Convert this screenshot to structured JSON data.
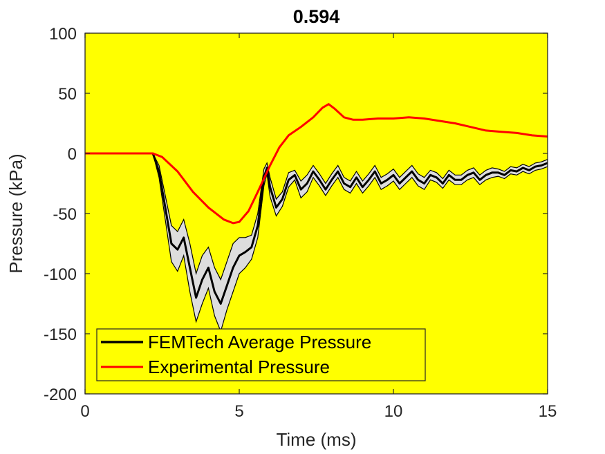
{
  "chart_data": {
    "type": "line",
    "title": "0.594",
    "xlabel": "Time (ms)",
    "ylabel": "Pressure (kPa)",
    "xlim": [
      0,
      15
    ],
    "ylim": [
      -200,
      100
    ],
    "xticks": [
      0,
      5,
      10,
      15
    ],
    "yticks": [
      -200,
      -150,
      -100,
      -50,
      0,
      50,
      100
    ],
    "xtick_labels": [
      "0",
      "5",
      "10",
      "15"
    ],
    "ytick_labels": [
      "-200",
      "-150",
      "-100",
      "-50",
      "0",
      "50",
      "100"
    ],
    "grid": false,
    "background_color": "#ffff00",
    "legend_position": "bottom-left",
    "series": [
      {
        "name": "FEMTech Average Pressure",
        "color": "#000000",
        "x": [
          0,
          2.2,
          2.4,
          2.6,
          2.8,
          3.0,
          3.2,
          3.4,
          3.6,
          3.8,
          4.0,
          4.2,
          4.4,
          4.6,
          4.8,
          5.0,
          5.2,
          5.4,
          5.6,
          5.8,
          5.9,
          6.0,
          6.2,
          6.4,
          6.6,
          6.8,
          7.0,
          7.2,
          7.4,
          7.6,
          7.8,
          8.0,
          8.2,
          8.4,
          8.6,
          8.8,
          9.0,
          9.2,
          9.4,
          9.6,
          9.8,
          10.0,
          10.2,
          10.4,
          10.6,
          10.8,
          11.0,
          11.2,
          11.4,
          11.6,
          11.8,
          12.0,
          12.2,
          12.4,
          12.6,
          12.8,
          13.0,
          13.2,
          13.4,
          13.6,
          13.8,
          14.0,
          14.2,
          14.4,
          14.6,
          14.8,
          15.0
        ],
        "y": [
          0,
          0,
          -15,
          -45,
          -75,
          -80,
          -70,
          -95,
          -120,
          -105,
          -95,
          -115,
          -125,
          -110,
          -95,
          -85,
          -82,
          -78,
          -60,
          -20,
          -12,
          -28,
          -45,
          -38,
          -22,
          -18,
          -30,
          -25,
          -15,
          -22,
          -30,
          -22,
          -15,
          -25,
          -28,
          -20,
          -28,
          -22,
          -15,
          -25,
          -22,
          -18,
          -25,
          -20,
          -15,
          -22,
          -25,
          -18,
          -20,
          -25,
          -18,
          -22,
          -22,
          -18,
          -16,
          -22,
          -18,
          -16,
          -16,
          -18,
          -14,
          -15,
          -12,
          -14,
          -11,
          -10,
          -8
        ],
        "band_upper": [
          0,
          0,
          -10,
          -35,
          -60,
          -65,
          -55,
          -75,
          -100,
          -85,
          -78,
          -95,
          -105,
          -90,
          -75,
          -70,
          -70,
          -68,
          -50,
          -13,
          -8,
          -20,
          -38,
          -32,
          -16,
          -14,
          -23,
          -18,
          -10,
          -17,
          -25,
          -17,
          -10,
          -20,
          -23,
          -15,
          -23,
          -17,
          -10,
          -20,
          -17,
          -13,
          -20,
          -15,
          -10,
          -17,
          -20,
          -14,
          -16,
          -21,
          -14,
          -18,
          -18,
          -14,
          -12,
          -18,
          -14,
          -12,
          -13,
          -15,
          -11,
          -12,
          -9,
          -11,
          -8,
          -7,
          -5
        ],
        "band_lower": [
          0,
          0,
          -20,
          -55,
          -90,
          -98,
          -85,
          -115,
          -140,
          -125,
          -112,
          -135,
          -148,
          -130,
          -115,
          -100,
          -95,
          -88,
          -70,
          -27,
          -17,
          -36,
          -52,
          -44,
          -28,
          -22,
          -37,
          -32,
          -20,
          -27,
          -35,
          -27,
          -20,
          -30,
          -33,
          -25,
          -33,
          -27,
          -20,
          -30,
          -27,
          -23,
          -30,
          -25,
          -20,
          -27,
          -30,
          -22,
          -24,
          -29,
          -22,
          -26,
          -26,
          -22,
          -20,
          -26,
          -22,
          -20,
          -19,
          -21,
          -17,
          -18,
          -15,
          -17,
          -14,
          -13,
          -11
        ]
      },
      {
        "name": "Experimental Pressure",
        "color": "#ff0000",
        "x": [
          0,
          2.2,
          2.5,
          3.0,
          3.5,
          4.0,
          4.5,
          4.8,
          5.0,
          5.3,
          5.6,
          6.0,
          6.3,
          6.6,
          7.0,
          7.4,
          7.7,
          7.9,
          8.1,
          8.4,
          8.7,
          9.0,
          9.5,
          10.0,
          10.5,
          11.0,
          11.5,
          12.0,
          12.5,
          13.0,
          13.5,
          14.0,
          14.5,
          15.0
        ],
        "y": [
          0,
          0,
          -3,
          -15,
          -32,
          -45,
          -55,
          -58,
          -57,
          -48,
          -32,
          -10,
          5,
          15,
          22,
          30,
          38,
          41,
          37,
          30,
          28,
          28,
          29,
          29,
          30,
          29,
          27,
          25,
          22,
          19,
          18,
          17,
          15,
          14
        ]
      }
    ]
  }
}
